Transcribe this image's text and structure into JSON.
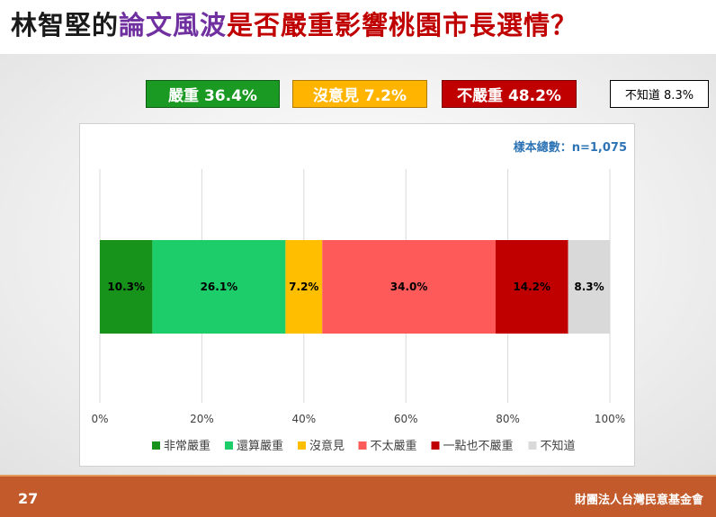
{
  "title": {
    "part1": "林智堅的",
    "part2": "論文風波",
    "part3": "是否嚴重影響桃園市長選情？"
  },
  "summary": [
    {
      "label": "嚴重 36.4%",
      "bg": "#1a9a22",
      "color": "#ffffff",
      "border": "#0d5e12"
    },
    {
      "label": "沒意見 7.2%",
      "bg": "#ffb400",
      "color": "#ffffff",
      "border": "#b07a00"
    },
    {
      "label": "不嚴重 48.2%",
      "bg": "#c00000",
      "color": "#ffffff",
      "border": "#7a0000"
    },
    {
      "label": "不知道 8.3%",
      "bg": "#ffffff",
      "color": "#000000",
      "border": "#000000"
    }
  ],
  "sample": "樣本總數：n=1,075",
  "chart_data": {
    "type": "bar",
    "orientation": "horizontal-stacked-100",
    "categories": [
      ""
    ],
    "series": [
      {
        "name": "非常嚴重",
        "values": [
          10.3
        ],
        "label": "10.3%",
        "color": "#17921b"
      },
      {
        "name": "還算嚴重",
        "values": [
          26.1
        ],
        "label": "26.1%",
        "color": "#1ccd6a"
      },
      {
        "name": "沒意見",
        "values": [
          7.2
        ],
        "label": "7.2%",
        "color": "#ffbf00"
      },
      {
        "name": "不太嚴重",
        "values": [
          34.0
        ],
        "label": "34.0%",
        "color": "#ff5a5a"
      },
      {
        "name": "一點也不嚴重",
        "values": [
          14.2
        ],
        "label": "14.2%",
        "color": "#c00000"
      },
      {
        "name": "不知道",
        "values": [
          8.3
        ],
        "label": "8.3%",
        "color": "#d9d9d9"
      }
    ],
    "xlim": [
      0,
      100
    ],
    "xticks": [
      "0%",
      "20%",
      "40%",
      "60%",
      "80%",
      "100%"
    ],
    "grid": true,
    "legend": "bottom"
  },
  "footer": {
    "page": "27",
    "org": "財團法人台灣民意基金會"
  },
  "colors": {
    "title_main": "#1a1a1a",
    "title_accent": "#7030a0",
    "title_red": "#c00000",
    "sample_text": "#2e74b5",
    "footer": "#c25a2b"
  }
}
